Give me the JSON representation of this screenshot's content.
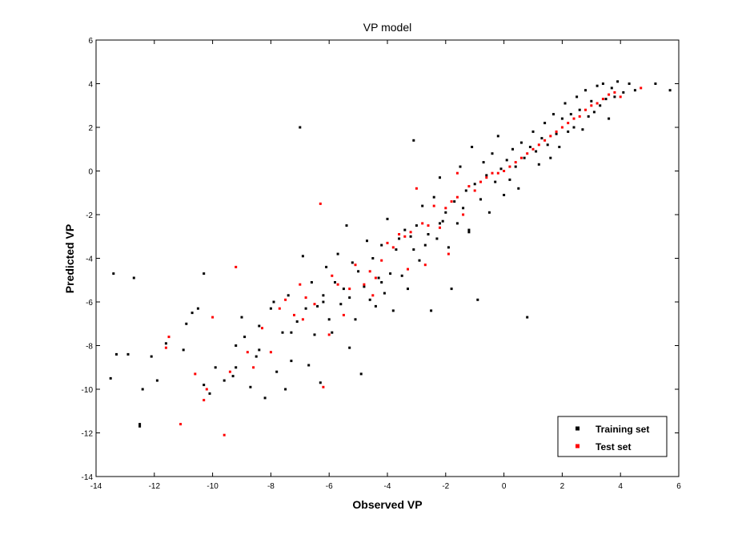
{
  "chart_data": {
    "type": "scatter",
    "title": "VP model",
    "xlabel": "Observed VP",
    "ylabel": "Predicted VP",
    "xlim": [
      -14,
      6
    ],
    "ylim": [
      -14,
      6
    ],
    "xticks": [
      "-14",
      "-12",
      "-10",
      "-8",
      "-6",
      "-4",
      "-2",
      "0",
      "2",
      "4",
      "6"
    ],
    "yticks": [
      "-14",
      "-12",
      "-10",
      "-8",
      "-6",
      "-4",
      "-2",
      "0",
      "2",
      "4",
      "6"
    ],
    "grid": false,
    "legend_position": "bottom-right",
    "series": [
      {
        "name": "Training set",
        "color": "#000000",
        "marker": "point",
        "points": [
          [
            -13.5,
            -9.5
          ],
          [
            -13.3,
            -8.4
          ],
          [
            -12.9,
            -8.4
          ],
          [
            -12.7,
            -4.9
          ],
          [
            -13.4,
            -4.7
          ],
          [
            -12.5,
            -11.7
          ],
          [
            -12.5,
            -11.6
          ],
          [
            -12.4,
            -10.0
          ],
          [
            -12.1,
            -8.5
          ],
          [
            -11.9,
            -9.6
          ],
          [
            -11.6,
            -7.9
          ],
          [
            -11.0,
            -8.2
          ],
          [
            -10.9,
            -7.0
          ],
          [
            -10.7,
            -6.5
          ],
          [
            -10.5,
            -6.3
          ],
          [
            -10.3,
            -4.7
          ],
          [
            -10.3,
            -9.8
          ],
          [
            -10.1,
            -10.2
          ],
          [
            -9.9,
            -9.0
          ],
          [
            -9.6,
            -9.6
          ],
          [
            -9.3,
            -9.4
          ],
          [
            -9.2,
            -8.0
          ],
          [
            -9.0,
            -6.7
          ],
          [
            -8.9,
            -7.6
          ],
          [
            -8.7,
            -9.9
          ],
          [
            -8.5,
            -8.5
          ],
          [
            -8.4,
            -7.1
          ],
          [
            -8.2,
            -10.4
          ],
          [
            -8.0,
            -6.3
          ],
          [
            -7.9,
            -6.0
          ],
          [
            -7.8,
            -9.2
          ],
          [
            -7.6,
            -7.4
          ],
          [
            -7.5,
            -10.0
          ],
          [
            -7.4,
            -5.7
          ],
          [
            -7.3,
            -8.7
          ],
          [
            -7.1,
            -6.9
          ],
          [
            -7.0,
            2.0
          ],
          [
            -6.9,
            -3.9
          ],
          [
            -6.8,
            -6.3
          ],
          [
            -6.7,
            -8.9
          ],
          [
            -6.6,
            -5.1
          ],
          [
            -6.5,
            -7.5
          ],
          [
            -6.4,
            -6.2
          ],
          [
            -6.3,
            -9.7
          ],
          [
            -6.2,
            -5.7
          ],
          [
            -6.1,
            -4.4
          ],
          [
            -6.0,
            -6.8
          ],
          [
            -5.9,
            -7.4
          ],
          [
            -5.8,
            -5.1
          ],
          [
            -5.7,
            -3.8
          ],
          [
            -5.6,
            -6.1
          ],
          [
            -5.5,
            -5.4
          ],
          [
            -5.4,
            -2.5
          ],
          [
            -5.3,
            -8.1
          ],
          [
            -5.2,
            -4.2
          ],
          [
            -5.1,
            -6.8
          ],
          [
            -5.0,
            -4.6
          ],
          [
            -4.9,
            -9.3
          ],
          [
            -4.8,
            -5.3
          ],
          [
            -4.7,
            -3.2
          ],
          [
            -4.6,
            -5.9
          ],
          [
            -4.5,
            -4.0
          ],
          [
            -4.4,
            -6.2
          ],
          [
            -4.3,
            -4.9
          ],
          [
            -4.2,
            -3.4
          ],
          [
            -4.1,
            -5.6
          ],
          [
            -4.0,
            -2.2
          ],
          [
            -3.9,
            -4.7
          ],
          [
            -3.8,
            -6.4
          ],
          [
            -3.7,
            -3.6
          ],
          [
            -3.6,
            -3.1
          ],
          [
            -3.5,
            -4.8
          ],
          [
            -3.4,
            -2.7
          ],
          [
            -3.3,
            -5.4
          ],
          [
            -3.2,
            -3.0
          ],
          [
            -3.1,
            1.4
          ],
          [
            -3.0,
            -2.5
          ],
          [
            -2.9,
            -4.1
          ],
          [
            -2.8,
            -1.6
          ],
          [
            -2.7,
            -3.4
          ],
          [
            -2.6,
            -2.9
          ],
          [
            -2.5,
            -6.4
          ],
          [
            -2.4,
            -1.2
          ],
          [
            -2.3,
            -3.1
          ],
          [
            -2.2,
            -0.3
          ],
          [
            -2.1,
            -2.3
          ],
          [
            -2.0,
            -1.9
          ],
          [
            -1.9,
            -3.5
          ],
          [
            -1.8,
            -5.4
          ],
          [
            -1.7,
            -1.4
          ],
          [
            -1.6,
            -2.4
          ],
          [
            -1.5,
            0.2
          ],
          [
            -1.4,
            -1.7
          ],
          [
            -1.3,
            -0.9
          ],
          [
            -1.2,
            -2.7
          ],
          [
            -1.1,
            1.1
          ],
          [
            -1.0,
            -0.6
          ],
          [
            -0.9,
            -5.9
          ],
          [
            -0.8,
            -1.3
          ],
          [
            -0.7,
            0.4
          ],
          [
            -0.6,
            -0.2
          ],
          [
            -0.5,
            -1.9
          ],
          [
            -0.4,
            0.8
          ],
          [
            -0.3,
            -0.5
          ],
          [
            -0.2,
            1.6
          ],
          [
            -0.1,
            0.1
          ],
          [
            0.0,
            -1.1
          ],
          [
            0.1,
            0.5
          ],
          [
            0.2,
            -0.4
          ],
          [
            0.3,
            1.0
          ],
          [
            0.4,
            0.2
          ],
          [
            0.5,
            -0.8
          ],
          [
            0.6,
            1.3
          ],
          [
            0.7,
            0.6
          ],
          [
            0.8,
            -6.7
          ],
          [
            0.9,
            1.1
          ],
          [
            1.0,
            1.8
          ],
          [
            1.1,
            0.9
          ],
          [
            1.2,
            0.3
          ],
          [
            1.3,
            1.5
          ],
          [
            1.4,
            2.2
          ],
          [
            1.5,
            1.2
          ],
          [
            1.6,
            0.6
          ],
          [
            1.7,
            2.6
          ],
          [
            1.8,
            1.7
          ],
          [
            1.9,
            1.1
          ],
          [
            2.0,
            2.4
          ],
          [
            2.1,
            3.1
          ],
          [
            2.2,
            1.8
          ],
          [
            2.3,
            2.6
          ],
          [
            2.4,
            2.0
          ],
          [
            2.5,
            3.4
          ],
          [
            2.6,
            2.8
          ],
          [
            2.7,
            1.9
          ],
          [
            2.8,
            3.7
          ],
          [
            2.9,
            2.5
          ],
          [
            3.0,
            3.2
          ],
          [
            3.1,
            2.7
          ],
          [
            3.2,
            3.9
          ],
          [
            3.3,
            3.0
          ],
          [
            3.4,
            4.0
          ],
          [
            3.5,
            3.3
          ],
          [
            3.6,
            2.4
          ],
          [
            3.7,
            3.8
          ],
          [
            3.8,
            3.4
          ],
          [
            3.9,
            4.1
          ],
          [
            4.1,
            3.6
          ],
          [
            4.3,
            4.0
          ],
          [
            4.5,
            3.7
          ],
          [
            5.2,
            4.0
          ],
          [
            5.7,
            3.7
          ],
          [
            -1.2,
            -2.8
          ],
          [
            -2.2,
            -2.4
          ],
          [
            -3.1,
            -3.6
          ],
          [
            -4.2,
            -5.1
          ],
          [
            -5.3,
            -5.8
          ],
          [
            -6.2,
            -6.0
          ],
          [
            -7.3,
            -7.4
          ],
          [
            -8.4,
            -8.2
          ],
          [
            -9.2,
            -9.0
          ]
        ]
      },
      {
        "name": "Test set",
        "color": "#ff0000",
        "marker": "point",
        "points": [
          [
            -11.6,
            -8.1
          ],
          [
            -11.5,
            -7.6
          ],
          [
            -11.1,
            -11.6
          ],
          [
            -10.6,
            -9.3
          ],
          [
            -10.3,
            -10.5
          ],
          [
            -10.2,
            -10.0
          ],
          [
            -10.0,
            -6.7
          ],
          [
            -9.6,
            -12.1
          ],
          [
            -9.4,
            -9.2
          ],
          [
            -9.2,
            -4.4
          ],
          [
            -8.8,
            -8.3
          ],
          [
            -8.6,
            -9.0
          ],
          [
            -8.3,
            -7.2
          ],
          [
            -8.0,
            -8.3
          ],
          [
            -7.7,
            -6.3
          ],
          [
            -7.5,
            -5.9
          ],
          [
            -7.2,
            -6.6
          ],
          [
            -7.0,
            -5.2
          ],
          [
            -6.8,
            -5.8
          ],
          [
            -6.5,
            -6.1
          ],
          [
            -6.3,
            -1.5
          ],
          [
            -6.2,
            -9.9
          ],
          [
            -6.0,
            -7.5
          ],
          [
            -5.7,
            -5.2
          ],
          [
            -5.5,
            -6.6
          ],
          [
            -5.3,
            -5.4
          ],
          [
            -5.1,
            -4.3
          ],
          [
            -4.8,
            -5.2
          ],
          [
            -4.6,
            -4.6
          ],
          [
            -4.4,
            -4.9
          ],
          [
            -4.2,
            -4.1
          ],
          [
            -4.0,
            -3.3
          ],
          [
            -3.8,
            -3.5
          ],
          [
            -3.6,
            -2.9
          ],
          [
            -3.4,
            -3.0
          ],
          [
            -3.2,
            -2.8
          ],
          [
            -3.0,
            -0.8
          ],
          [
            -2.8,
            -2.4
          ],
          [
            -2.6,
            -2.5
          ],
          [
            -2.4,
            -1.6
          ],
          [
            -2.2,
            -2.6
          ],
          [
            -2.0,
            -1.7
          ],
          [
            -1.8,
            -1.4
          ],
          [
            -1.6,
            -1.2
          ],
          [
            -1.4,
            -2.0
          ],
          [
            -1.2,
            -0.7
          ],
          [
            -1.0,
            -0.9
          ],
          [
            -0.8,
            -0.5
          ],
          [
            -0.6,
            -0.3
          ],
          [
            -0.4,
            -0.1
          ],
          [
            -0.2,
            -0.1
          ],
          [
            0.0,
            0.0
          ],
          [
            0.2,
            0.2
          ],
          [
            0.4,
            0.4
          ],
          [
            0.6,
            0.6
          ],
          [
            0.8,
            0.8
          ],
          [
            1.0,
            1.0
          ],
          [
            1.2,
            1.2
          ],
          [
            1.4,
            1.4
          ],
          [
            1.6,
            1.6
          ],
          [
            1.8,
            1.8
          ],
          [
            2.0,
            2.0
          ],
          [
            2.2,
            2.2
          ],
          [
            2.4,
            2.4
          ],
          [
            2.6,
            2.5
          ],
          [
            2.8,
            2.8
          ],
          [
            3.0,
            3.0
          ],
          [
            3.2,
            3.1
          ],
          [
            3.4,
            3.3
          ],
          [
            3.6,
            3.5
          ],
          [
            3.8,
            3.6
          ],
          [
            4.0,
            3.4
          ],
          [
            4.7,
            3.8
          ],
          [
            -1.6,
            -0.1
          ],
          [
            -1.9,
            -3.8
          ],
          [
            -2.7,
            -4.3
          ],
          [
            -3.3,
            -4.5
          ],
          [
            -4.5,
            -5.7
          ],
          [
            -5.9,
            -4.8
          ],
          [
            -6.9,
            -6.8
          ]
        ]
      }
    ]
  }
}
